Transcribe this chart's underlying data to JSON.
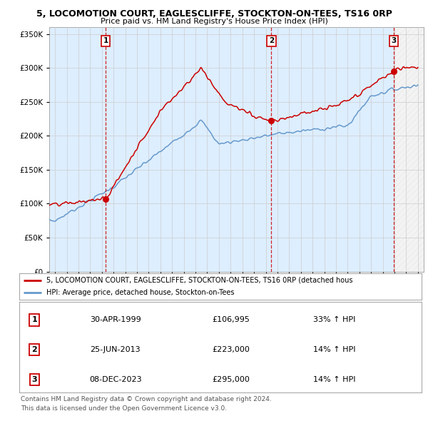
{
  "title": "5, LOCOMOTION COURT, EAGLESCLIFFE, STOCKTON-ON-TEES, TS16 0RP",
  "subtitle": "Price paid vs. HM Land Registry's House Price Index (HPI)",
  "legend_red": "5, LOCOMOTION COURT, EAGLESCLIFFE, STOCKTON-ON-TEES, TS16 0RP (detached hous",
  "legend_blue": "HPI: Average price, detached house, Stockton-on-Tees",
  "footer1": "Contains HM Land Registry data © Crown copyright and database right 2024.",
  "footer2": "This data is licensed under the Open Government Licence v3.0.",
  "sales": [
    {
      "num": 1,
      "date": "30-APR-1999",
      "price": 106995,
      "hpi_pct": "33% ↑ HPI",
      "year": 1999.33
    },
    {
      "num": 2,
      "date": "25-JUN-2013",
      "price": 223000,
      "hpi_pct": "14% ↑ HPI",
      "year": 2013.48
    },
    {
      "num": 3,
      "date": "08-DEC-2023",
      "price": 295000,
      "hpi_pct": "14% ↑ HPI",
      "year": 2023.93
    }
  ],
  "ylim": [
    0,
    360000
  ],
  "xlim_start": 1994.5,
  "xlim_end": 2026.5,
  "yticks": [
    0,
    50000,
    100000,
    150000,
    200000,
    250000,
    300000,
    350000
  ],
  "ytick_labels": [
    "£0",
    "£50K",
    "£100K",
    "£150K",
    "£200K",
    "£250K",
    "£300K",
    "£350K"
  ],
  "xticks": [
    1995,
    1996,
    1997,
    1998,
    1999,
    2000,
    2001,
    2002,
    2003,
    2004,
    2005,
    2006,
    2007,
    2008,
    2009,
    2010,
    2011,
    2012,
    2013,
    2014,
    2015,
    2016,
    2017,
    2018,
    2019,
    2020,
    2021,
    2022,
    2023,
    2024,
    2025,
    2026
  ],
  "red_color": "#cc0000",
  "blue_color": "#6699cc",
  "shade_color": "#ddeeff",
  "vline_color": "#cc0000",
  "sale_dot_color": "#cc0000",
  "grid_color": "#cccccc",
  "bg_color": "#ffffff",
  "plot_bg": "#ffffff"
}
